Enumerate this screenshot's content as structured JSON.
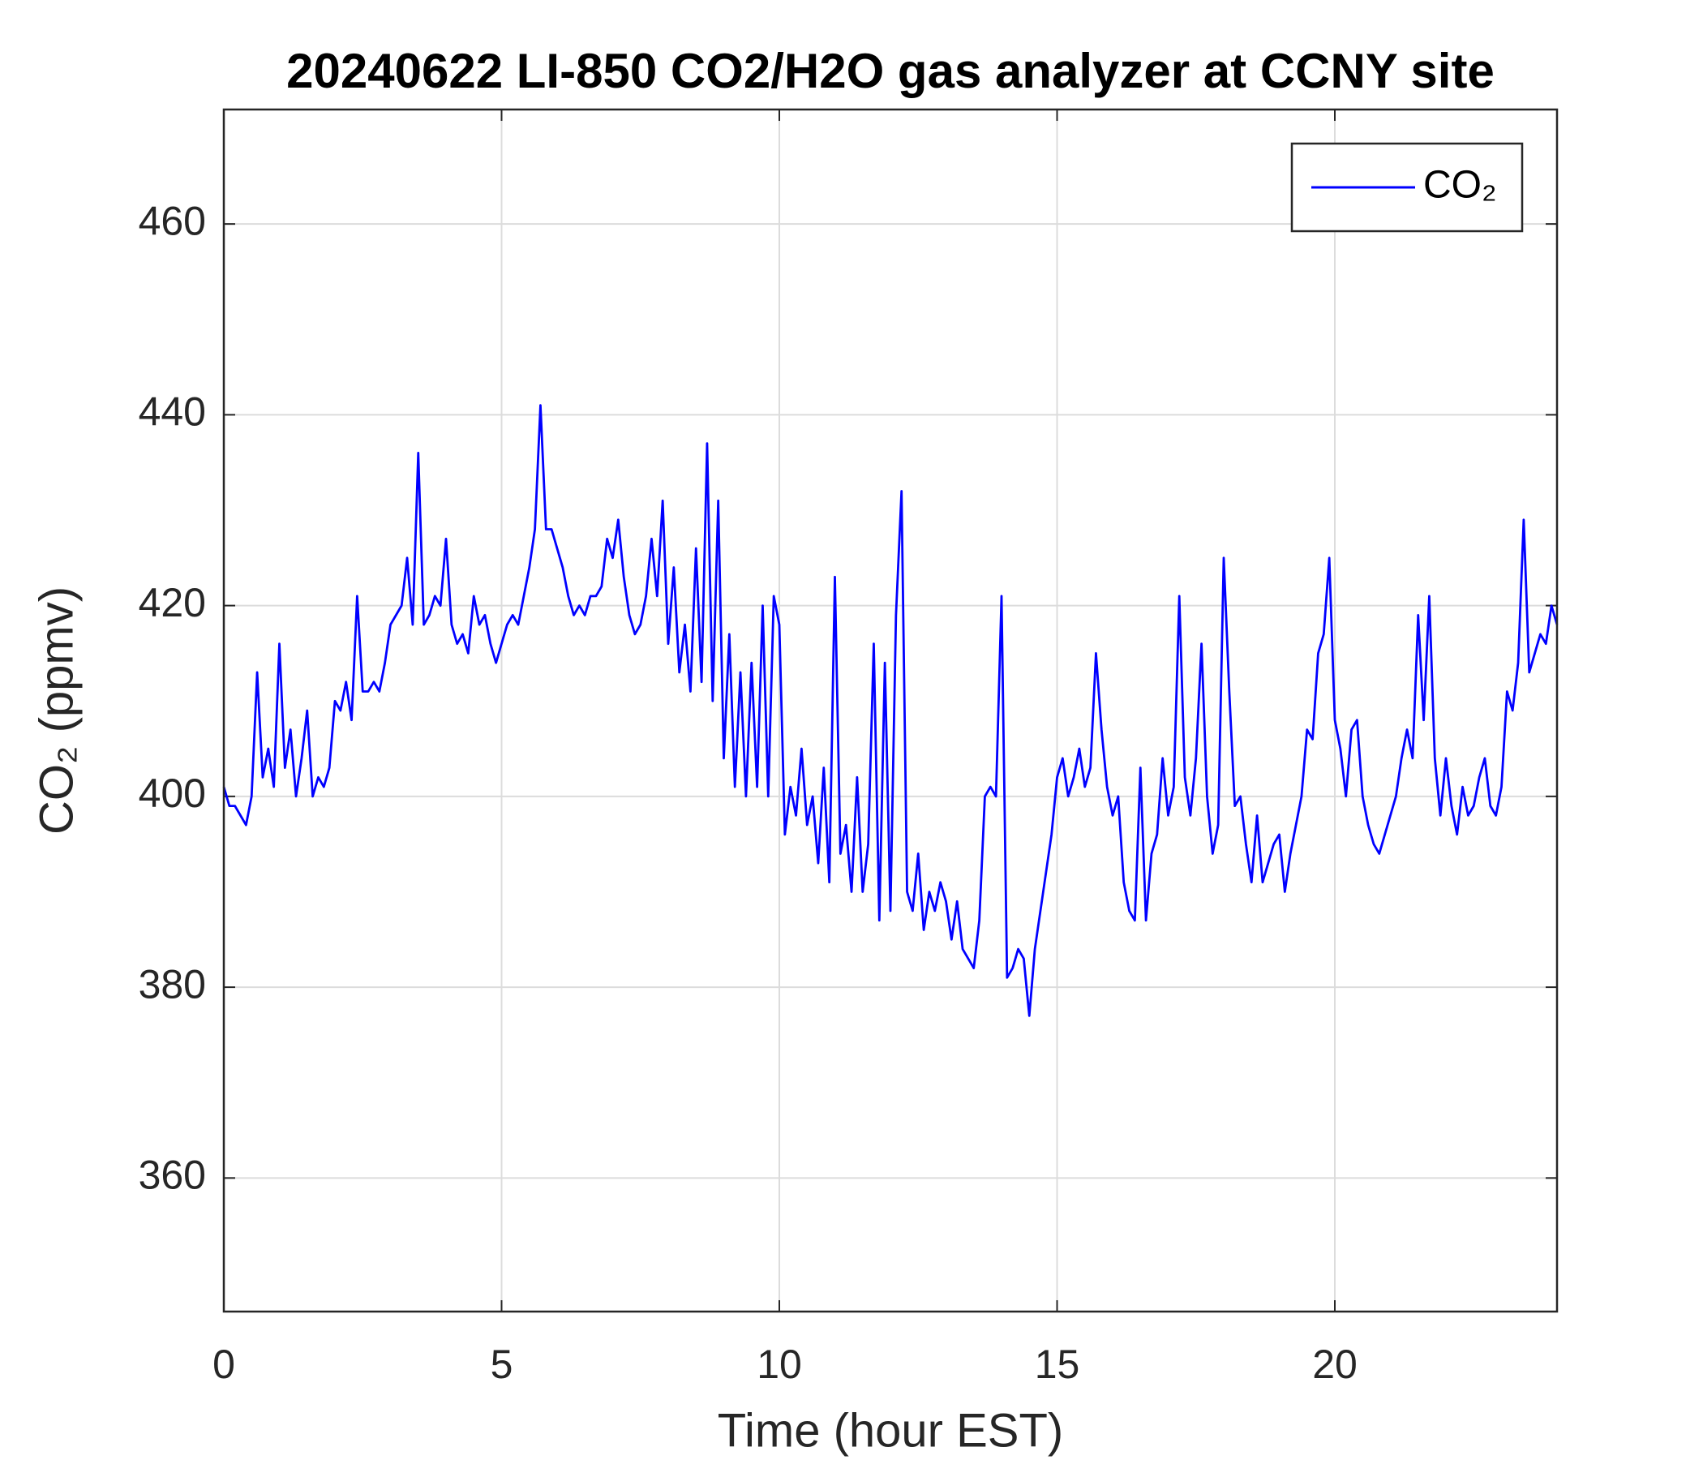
{
  "chart_data": {
    "type": "line",
    "title": "20240622 LI-850 CO2/H2O gas analyzer at CCNY site",
    "x_label": "Time (hour EST)",
    "y_label": "CO₂ (ppmv)",
    "x": [
      0,
      0.1,
      0.2,
      0.3,
      0.4,
      0.5,
      0.6,
      0.7,
      0.8,
      0.9,
      1,
      1.1,
      1.2,
      1.3,
      1.4,
      1.5,
      1.6,
      1.7,
      1.8,
      1.9,
      2,
      2.1,
      2.2,
      2.3,
      2.4,
      2.5,
      2.6,
      2.7,
      2.8,
      2.9,
      3,
      3.1,
      3.2,
      3.3,
      3.4,
      3.5,
      3.6,
      3.7,
      3.8,
      3.9,
      4,
      4.1,
      4.2,
      4.3,
      4.4,
      4.5,
      4.6,
      4.7,
      4.8,
      4.9,
      5,
      5.1,
      5.2,
      5.3,
      5.4,
      5.5,
      5.6,
      5.7,
      5.8,
      5.9,
      6,
      6.1,
      6.2,
      6.3,
      6.4,
      6.5,
      6.6,
      6.7,
      6.8,
      6.9,
      7,
      7.1,
      7.2,
      7.3,
      7.4,
      7.5,
      7.6,
      7.7,
      7.8,
      7.9,
      8,
      8.1,
      8.2,
      8.3,
      8.4,
      8.5,
      8.6,
      8.7,
      8.8,
      8.9,
      9,
      9.1,
      9.2,
      9.3,
      9.4,
      9.5,
      9.6,
      9.7,
      9.8,
      9.9,
      10,
      10.1,
      10.2,
      10.3,
      10.4,
      10.5,
      10.6,
      10.7,
      10.8,
      10.9,
      11,
      11.1,
      11.2,
      11.3,
      11.4,
      11.5,
      11.6,
      11.7,
      11.8,
      11.9,
      12,
      12.1,
      12.2,
      12.3,
      12.4,
      12.5,
      12.6,
      12.7,
      12.8,
      12.9,
      13,
      13.1,
      13.2,
      13.3,
      13.4,
      13.5,
      13.6,
      13.7,
      13.8,
      13.9,
      14,
      14.1,
      14.2,
      14.3,
      14.4,
      14.5,
      14.6,
      14.7,
      14.8,
      14.9,
      15,
      15.1,
      15.2,
      15.3,
      15.4,
      15.5,
      15.6,
      15.7,
      15.8,
      15.9,
      16,
      16.1,
      16.2,
      16.3,
      16.4,
      16.5,
      16.6,
      16.7,
      16.8,
      16.9,
      17,
      17.1,
      17.2,
      17.3,
      17.4,
      17.5,
      17.6,
      17.7,
      17.8,
      17.9,
      18,
      18.1,
      18.2,
      18.3,
      18.4,
      18.5,
      18.6,
      18.7,
      18.8,
      18.9,
      19,
      19.1,
      19.2,
      19.3,
      19.4,
      19.5,
      19.6,
      19.7,
      19.8,
      19.9,
      20,
      20.1,
      20.2,
      20.3,
      20.4,
      20.5,
      20.6,
      20.7,
      20.8,
      20.9,
      21,
      21.1,
      21.2,
      21.3,
      21.4,
      21.5,
      21.6,
      21.7,
      21.8,
      21.9,
      22,
      22.1,
      22.2,
      22.3,
      22.4,
      22.5,
      22.6,
      22.7,
      22.8,
      22.9,
      23,
      23.1,
      23.2,
      23.3,
      23.4,
      23.5,
      23.6,
      23.7,
      23.8,
      23.9,
      24
    ],
    "series": [
      {
        "name": "CO₂",
        "color": "#0000ff",
        "values": [
          401,
          399,
          399,
          398,
          397,
          400,
          413,
          402,
          405,
          401,
          416,
          403,
          407,
          400,
          404,
          409,
          400,
          402,
          401,
          403,
          410,
          409,
          412,
          408,
          421,
          411,
          411,
          412,
          411,
          414,
          418,
          419,
          420,
          425,
          418,
          436,
          418,
          419,
          421,
          420,
          427,
          418,
          416,
          417,
          415,
          421,
          418,
          419,
          416,
          414,
          416,
          418,
          419,
          418,
          421,
          424,
          428,
          441,
          428,
          428,
          426,
          424,
          421,
          419,
          420,
          419,
          421,
          421,
          422,
          427,
          425,
          429,
          423,
          419,
          417,
          418,
          421,
          427,
          421,
          431,
          416,
          424,
          413,
          418,
          411,
          426,
          412,
          437,
          410,
          431,
          404,
          417,
          401,
          413,
          400,
          414,
          401,
          420,
          400,
          421,
          418,
          396,
          401,
          398,
          405,
          397,
          400,
          393,
          403,
          391,
          423,
          394,
          397,
          390,
          402,
          390,
          395,
          416,
          387,
          414,
          388,
          419,
          432,
          390,
          388,
          394,
          386,
          390,
          388,
          391,
          389,
          385,
          389,
          384,
          383,
          382,
          387,
          400,
          401,
          400,
          421,
          381,
          382,
          384,
          383,
          377,
          384,
          388,
          392,
          396,
          402,
          404,
          400,
          402,
          405,
          401,
          403,
          415,
          407,
          401,
          398,
          400,
          391,
          388,
          387,
          403,
          387,
          394,
          396,
          404,
          398,
          401,
          421,
          402,
          398,
          404,
          416,
          400,
          394,
          397,
          425,
          411,
          399,
          400,
          395,
          391,
          398,
          391,
          393,
          395,
          396,
          390,
          394,
          397,
          400,
          407,
          406,
          415,
          417,
          425,
          408,
          405,
          400,
          407,
          408,
          400,
          397,
          395,
          394,
          396,
          398,
          400,
          404,
          407,
          404,
          419,
          408,
          421,
          404,
          398,
          404,
          399,
          396,
          401,
          398,
          399,
          402,
          404,
          399,
          398,
          401,
          411,
          409,
          414,
          429,
          413,
          415,
          417,
          416,
          420,
          418
        ]
      }
    ],
    "xlim": [
      0,
      24
    ],
    "xticks": [
      0,
      5,
      10,
      15,
      20
    ],
    "ylim": [
      346,
      472
    ],
    "yticks": [
      360,
      380,
      400,
      420,
      440,
      460
    ],
    "grid": true,
    "legend_position": "upper right"
  }
}
